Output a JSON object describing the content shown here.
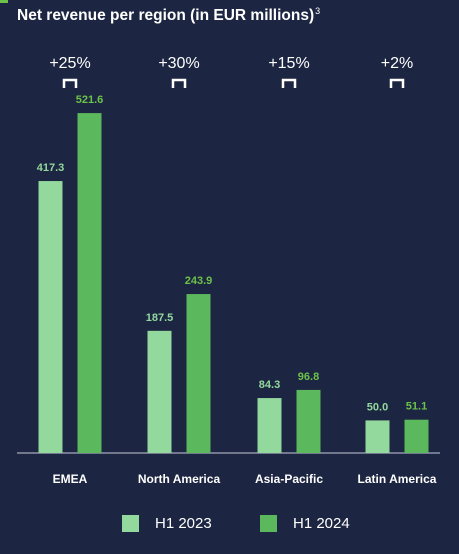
{
  "title": "Net revenue per region (in EUR millions)",
  "title_footnote": "3",
  "chart_data": {
    "type": "bar",
    "title": "Net revenue per region (in EUR millions)",
    "categories": [
      "EMEA",
      "North America",
      "Asia-Pacific",
      "Latin America"
    ],
    "series": [
      {
        "name": "H1 2023",
        "values": [
          417.3,
          187.5,
          84.3,
          50.0
        ],
        "labels": [
          "417.3",
          "187.5",
          "84.3",
          "50.0"
        ],
        "color": "#93d89d"
      },
      {
        "name": "H1 2024",
        "values": [
          521.6,
          243.9,
          96.8,
          51.1
        ],
        "labels": [
          "521.6",
          "243.9",
          "96.8",
          "51.1"
        ],
        "color": "#5cb85c"
      }
    ],
    "growth": [
      "+25%",
      "+30%",
      "+15%",
      "+2%"
    ],
    "ylim": [
      0,
      600
    ],
    "grid": false,
    "legend": "bottom"
  },
  "colors": {
    "background": "#1c2541",
    "baseline": "#8f95a8",
    "value_label_2023": "#93d89d",
    "value_label_2024": "#6cc24a",
    "text": "#ffffff"
  }
}
